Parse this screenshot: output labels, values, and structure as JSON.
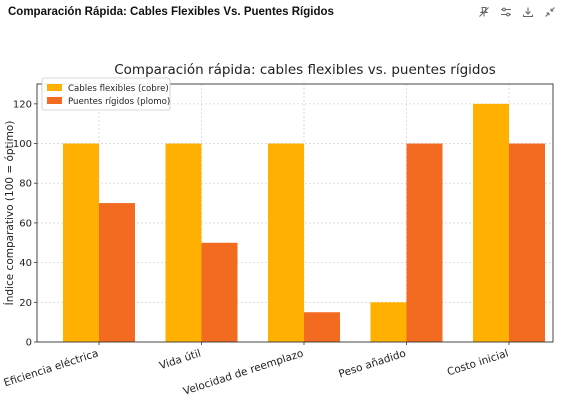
{
  "window": {
    "title": "Comparación Rápida: Cables Flexibles Vs. Puentes Rígidos"
  },
  "toolbar": {
    "icons": [
      "pin-icon",
      "settings-sliders-icon",
      "download-icon",
      "collapse-icon"
    ]
  },
  "colors": {
    "series_1": "#FFB000",
    "series_2": "#F26B21"
  },
  "chart_data": {
    "type": "bar",
    "title": "Comparación rápida: cables flexibles vs. puentes rígidos",
    "xlabel": "",
    "ylabel": "Índice comparativo (100 = óptimo)",
    "categories": [
      "Eficiencia eléctrica",
      "Vida útil",
      "Velocidad de reemplazo",
      "Peso añadido",
      "Costo inicial"
    ],
    "series": [
      {
        "name": "Cables flexibles (cobre)",
        "values": [
          100,
          100,
          100,
          20,
          120
        ]
      },
      {
        "name": "Puentes rígidos (plomo)",
        "values": [
          70,
          50,
          15,
          100,
          100
        ]
      }
    ],
    "ylim": [
      0,
      130
    ],
    "yticks": [
      0,
      20,
      40,
      60,
      80,
      100,
      120
    ],
    "grid": true,
    "legend_position": "top-left"
  }
}
